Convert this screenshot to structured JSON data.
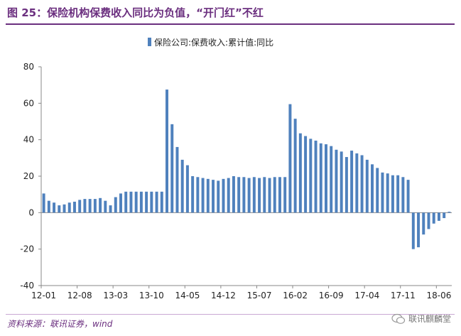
{
  "figure": {
    "title": "图 25：保险机构保费收入同比为负值，“开门红”不红",
    "source": "资料来源：联讯证券，wind",
    "watermark": "联讯麒麟堂",
    "watermark_icon": "wechat-icon"
  },
  "colors": {
    "bar": "#4f81bd",
    "title": "#6b2f7f",
    "axis": "#888888"
  },
  "chart_data": {
    "type": "bar",
    "legend": "保险公司:保费收入:累计值:同比",
    "legend_position": "top-center",
    "grid": false,
    "ylim": [
      -40,
      80
    ],
    "yticks": [
      -40,
      -20,
      0,
      20,
      40,
      60,
      80
    ],
    "xtick_labels": [
      "12-01",
      "12-08",
      "13-03",
      "13-10",
      "14-05",
      "14-12",
      "15-07",
      "16-02",
      "16-09",
      "17-04",
      "17-11",
      "18-06"
    ],
    "xtick_positions": [
      "12-01",
      "12-08",
      "13-03",
      "13-10",
      "14-05",
      "14-12",
      "15-07",
      "16-02",
      "16-09",
      "17-04",
      "17-11",
      "18-06"
    ],
    "categories": [
      "12-01",
      "12-02",
      "12-03",
      "12-04",
      "12-05",
      "12-06",
      "12-07",
      "12-08",
      "12-09",
      "12-10",
      "12-11",
      "12-12",
      "13-01",
      "13-02",
      "13-03",
      "13-04",
      "13-05",
      "13-06",
      "13-07",
      "13-08",
      "13-09",
      "13-10",
      "13-11",
      "13-12",
      "14-01",
      "14-02",
      "14-03",
      "14-04",
      "14-05",
      "14-06",
      "14-07",
      "14-08",
      "14-09",
      "14-10",
      "14-11",
      "14-12",
      "15-01",
      "15-02",
      "15-03",
      "15-04",
      "15-05",
      "15-06",
      "15-07",
      "15-08",
      "15-09",
      "15-10",
      "15-11",
      "15-12",
      "16-01",
      "16-02",
      "16-03",
      "16-04",
      "16-05",
      "16-06",
      "16-07",
      "16-08",
      "16-09",
      "16-10",
      "16-11",
      "16-12",
      "17-01",
      "17-02",
      "17-03",
      "17-04",
      "17-05",
      "17-06",
      "17-07",
      "17-08",
      "17-09",
      "17-10",
      "17-11",
      "17-12",
      "18-01",
      "18-02",
      "18-03",
      "18-04",
      "18-05",
      "18-06",
      "18-07",
      "18-08"
    ],
    "values": [
      10.5,
      6.5,
      5.5,
      4.0,
      4.5,
      5.5,
      6.0,
      7.0,
      7.5,
      7.5,
      7.5,
      8.0,
      6.5,
      4.0,
      8.5,
      10.5,
      11.5,
      11.5,
      11.5,
      11.5,
      11.5,
      11.5,
      11.5,
      11.5,
      67.5,
      48.5,
      36.0,
      29.0,
      26.0,
      20.0,
      19.5,
      19.0,
      18.5,
      18.0,
      17.5,
      18.5,
      19.0,
      20.0,
      19.5,
      19.5,
      19.0,
      19.5,
      19.0,
      19.5,
      19.0,
      19.5,
      19.5,
      19.5,
      59.5,
      51.5,
      43.5,
      42.0,
      40.5,
      39.5,
      38.0,
      37.5,
      36.5,
      34.5,
      33.5,
      30.5,
      34.0,
      32.5,
      31.5,
      29.0,
      26.5,
      24.5,
      22.0,
      21.5,
      20.5,
      20.5,
      19.5,
      18.0,
      -20.0,
      -19.0,
      -12.0,
      -9.0,
      -6.0,
      -4.5,
      -3.0,
      0.5
    ]
  }
}
